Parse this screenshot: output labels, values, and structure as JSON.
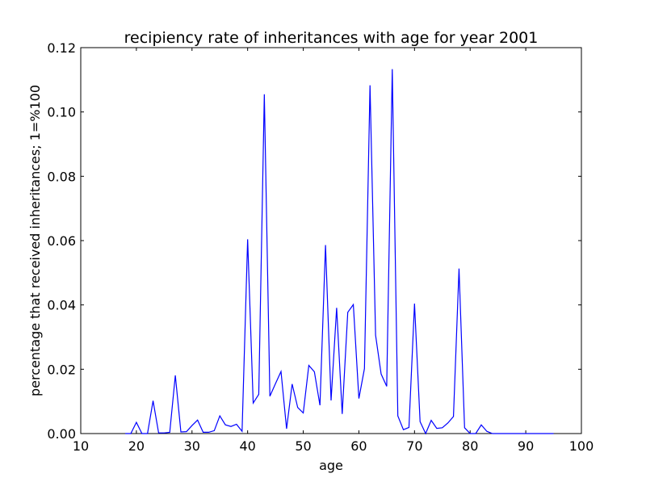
{
  "chart_data": {
    "type": "line",
    "title": "recipiency rate of inheritances with age for year 2001",
    "xlabel": "age",
    "ylabel": "percentage that received inheritances; 1=%100",
    "xlim": [
      10,
      100
    ],
    "ylim": [
      0,
      0.12
    ],
    "xticks": [
      10,
      20,
      30,
      40,
      50,
      60,
      70,
      80,
      90,
      100
    ],
    "xtick_labels": [
      "10",
      "20",
      "30",
      "40",
      "50",
      "60",
      "70",
      "80",
      "90",
      "100"
    ],
    "yticks": [
      0,
      0.02,
      0.04,
      0.06,
      0.08,
      0.1,
      0.12
    ],
    "ytick_labels": [
      "0.00",
      "0.02",
      "0.04",
      "0.06",
      "0.08",
      "0.10",
      "0.12"
    ],
    "grid": false,
    "legend": "none",
    "series": [
      {
        "color": "#0000ff",
        "x": [
          18,
          19,
          20,
          21,
          22,
          23,
          24,
          25,
          26,
          27,
          28,
          29,
          30,
          31,
          32,
          33,
          34,
          35,
          36,
          37,
          38,
          39,
          40,
          41,
          42,
          43,
          44,
          45,
          46,
          47,
          48,
          49,
          50,
          51,
          52,
          53,
          54,
          55,
          56,
          57,
          58,
          59,
          60,
          61,
          62,
          63,
          64,
          65,
          66,
          67,
          68,
          69,
          70,
          71,
          72,
          73,
          74,
          75,
          76,
          77,
          78,
          79,
          80,
          81,
          82,
          83,
          84,
          85,
          86,
          87,
          88,
          89,
          90,
          91,
          92,
          93,
          94,
          95
        ],
        "y": [
          0,
          0,
          0.0035,
          0,
          0,
          0.0102,
          0.0002,
          0.0002,
          0.0004,
          0.0181,
          0.0005,
          0.0006,
          0.0025,
          0.0042,
          0.0004,
          0.0004,
          0.0009,
          0.0055,
          0.0027,
          0.0022,
          0.0029,
          0.0007,
          0.0604,
          0.0095,
          0.0122,
          0.1055,
          0.0116,
          0.0155,
          0.0193,
          0.0015,
          0.0154,
          0.0081,
          0.0064,
          0.0212,
          0.0192,
          0.0088,
          0.0586,
          0.0103,
          0.0391,
          0.0061,
          0.0377,
          0.0401,
          0.0109,
          0.0202,
          0.1083,
          0.0306,
          0.0185,
          0.0147,
          0.1133,
          0.0055,
          0.0012,
          0.0019,
          0.0404,
          0.0037,
          0,
          0.0041,
          0.0016,
          0.0018,
          0.0033,
          0.0053,
          0.0513,
          0.0018,
          0,
          0,
          0.0027,
          0.0007,
          0,
          0,
          0,
          0,
          0,
          0,
          0,
          0,
          0,
          0,
          0,
          0
        ]
      }
    ]
  }
}
